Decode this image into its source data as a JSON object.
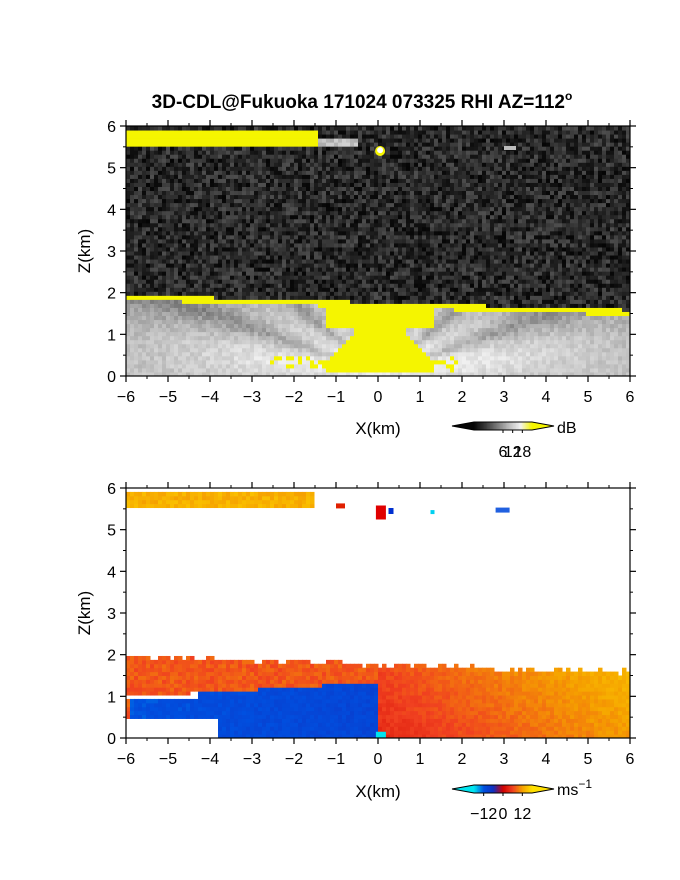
{
  "title": "3D-CDL@Fukuoka 171024 073325 RHI AZ=112",
  "title_sup": "o",
  "chart_data": [
    {
      "type": "heatmap",
      "quantity": "echo intensity",
      "xlabel": "X(km)",
      "ylabel": "Z(km)",
      "xlim": [
        -6,
        6
      ],
      "ylim": [
        0,
        6
      ],
      "xticks": [
        "−6",
        "−5",
        "−4",
        "−3",
        "−2",
        "−1",
        "0",
        "1",
        "2",
        "3",
        "4",
        "5",
        "6"
      ],
      "yticks": [
        "0",
        "1",
        "2",
        "3",
        "4",
        "5",
        "6"
      ],
      "colorbar": {
        "unit": "dB",
        "ticks": [
          "6",
          "12",
          "18"
        ],
        "tick_values": [
          6,
          12,
          18
        ],
        "range": [
          -12,
          24
        ],
        "colors": [
          "#050505",
          "#3a3a3a",
          "#7a7a7a",
          "#bcbcbc",
          "#f2f2f2",
          "#f5f500"
        ]
      }
    },
    {
      "type": "heatmap",
      "quantity": "Doppler velocity",
      "xlabel": "X(km)",
      "ylabel": "Z(km)",
      "xlim": [
        -6,
        6
      ],
      "ylim": [
        0,
        6
      ],
      "xticks": [
        "−6",
        "−5",
        "−4",
        "−3",
        "−2",
        "−1",
        "0",
        "1",
        "2",
        "3",
        "4",
        "5",
        "6"
      ],
      "yticks": [
        "0",
        "1",
        "2",
        "3",
        "4",
        "5",
        "6"
      ],
      "colorbar": {
        "unit": "ms",
        "unit_sup": "−1",
        "ticks": [
          "−12",
          "0",
          "12"
        ],
        "tick_values": [
          -12,
          0,
          12
        ],
        "range": [
          -18,
          18
        ],
        "colors": [
          "#00e5f0",
          "#0050e0",
          "#1030c0",
          "#d00000",
          "#f04020",
          "#f5a000",
          "#ffe000"
        ]
      }
    }
  ]
}
